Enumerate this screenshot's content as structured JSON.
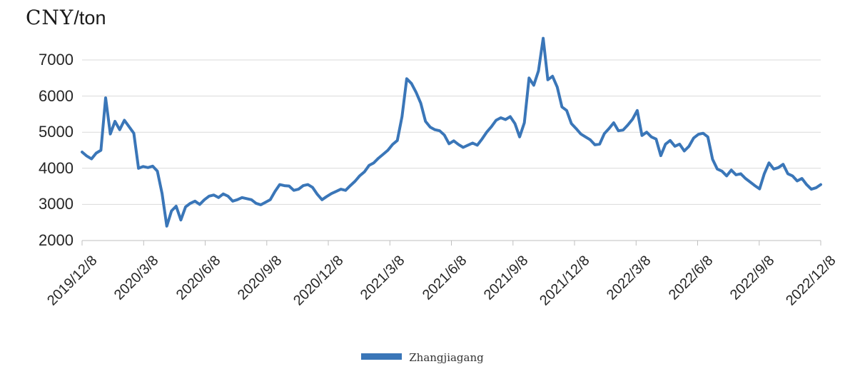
{
  "title": {
    "unit_currency": "CNY",
    "unit_suffix": "/ton"
  },
  "legend": {
    "series_label": "Zhangjiagang"
  },
  "colors": {
    "line": "#3a76b8",
    "gridline": "#d9d9d9",
    "axis": "#bfbfbf",
    "text": "#262626"
  },
  "chart_data": {
    "type": "line",
    "title": "CNY/ton",
    "ylabel": "CNY/ton",
    "ylim": [
      2000,
      7000
    ],
    "y_tick_interval": 1000,
    "y_tick_labels": [
      "7000",
      "6000",
      "5000",
      "4000",
      "3000",
      "2000"
    ],
    "x_tick_labels": [
      "2019/12/8",
      "2020/3/8",
      "2020/6/8",
      "2020/9/8",
      "2020/12/8",
      "2021/3/8",
      "2021/6/8",
      "2021/9/8",
      "2021/12/8",
      "2022/3/8",
      "2022/6/8",
      "2022/9/8",
      "2022/12/8"
    ],
    "grid": "horizontal",
    "legend_position": "bottom-center",
    "series": [
      {
        "name": "Zhangjiagang",
        "color": "#3a76b8",
        "dates": [
          "2019/12/8",
          "2019/12/15",
          "2019/12/22",
          "2019/12/29",
          "2020/1/5",
          "2020/1/12",
          "2020/1/19",
          "2020/1/26",
          "2020/2/2",
          "2020/2/9",
          "2020/2/16",
          "2020/2/23",
          "2020/3/1",
          "2020/3/8",
          "2020/3/15",
          "2020/3/22",
          "2020/3/29",
          "2020/4/5",
          "2020/4/12",
          "2020/4/19",
          "2020/4/26",
          "2020/5/3",
          "2020/5/10",
          "2020/5/17",
          "2020/5/24",
          "2020/5/31",
          "2020/6/7",
          "2020/6/14",
          "2020/6/21",
          "2020/6/28",
          "2020/7/5",
          "2020/7/12",
          "2020/7/19",
          "2020/7/26",
          "2020/8/2",
          "2020/8/9",
          "2020/8/16",
          "2020/8/23",
          "2020/8/30",
          "2020/9/6",
          "2020/9/13",
          "2020/9/20",
          "2020/9/27",
          "2020/10/4",
          "2020/10/11",
          "2020/10/18",
          "2020/10/25",
          "2020/11/1",
          "2020/11/8",
          "2020/11/15",
          "2020/11/22",
          "2020/11/29",
          "2020/12/6",
          "2020/12/13",
          "2020/12/20",
          "2020/12/27",
          "2021/1/3",
          "2021/1/10",
          "2021/1/17",
          "2021/1/24",
          "2021/1/31",
          "2021/2/7",
          "2021/2/14",
          "2021/2/21",
          "2021/2/28",
          "2021/3/7",
          "2021/3/14",
          "2021/3/21",
          "2021/3/28",
          "2021/4/4",
          "2021/4/11",
          "2021/4/18",
          "2021/4/25",
          "2021/5/2",
          "2021/5/9",
          "2021/5/16",
          "2021/5/23",
          "2021/5/30",
          "2021/6/6",
          "2021/6/13",
          "2021/6/20",
          "2021/6/27",
          "2021/7/4",
          "2021/7/11",
          "2021/7/18",
          "2021/7/25",
          "2021/8/1",
          "2021/8/8",
          "2021/8/15",
          "2021/8/22",
          "2021/8/29",
          "2021/9/5",
          "2021/9/12",
          "2021/9/19",
          "2021/9/26",
          "2021/10/3",
          "2021/10/10",
          "2021/10/17",
          "2021/10/24",
          "2021/10/31",
          "2021/11/7",
          "2021/11/14",
          "2021/11/21",
          "2021/11/28",
          "2021/12/5",
          "2021/12/12",
          "2021/12/19",
          "2021/12/26",
          "2022/1/2",
          "2022/1/9",
          "2022/1/16",
          "2022/1/23",
          "2022/1/30",
          "2022/2/6",
          "2022/2/13",
          "2022/2/20",
          "2022/2/27",
          "2022/3/6",
          "2022/3/13",
          "2022/3/20",
          "2022/3/27",
          "2022/4/3",
          "2022/4/10",
          "2022/4/17",
          "2022/4/24",
          "2022/5/1",
          "2022/5/8",
          "2022/5/15",
          "2022/5/22",
          "2022/5/29",
          "2022/6/5",
          "2022/6/12",
          "2022/6/19",
          "2022/6/26",
          "2022/7/3",
          "2022/7/10",
          "2022/7/17",
          "2022/7/24",
          "2022/7/31",
          "2022/8/7",
          "2022/8/14",
          "2022/8/21",
          "2022/8/28",
          "2022/9/4",
          "2022/9/11",
          "2022/9/18",
          "2022/9/25",
          "2022/10/2",
          "2022/10/9",
          "2022/10/16",
          "2022/10/23",
          "2022/10/30",
          "2022/11/6",
          "2022/11/13",
          "2022/11/20",
          "2022/11/27",
          "2022/12/4",
          "2022/12/8"
        ],
        "values": [
          4450,
          4340,
          4260,
          4420,
          4500,
          5950,
          4950,
          5300,
          5070,
          5330,
          5150,
          4970,
          4000,
          4050,
          4020,
          4060,
          3920,
          3300,
          2400,
          2820,
          2950,
          2570,
          2930,
          3030,
          3090,
          3000,
          3130,
          3230,
          3260,
          3190,
          3290,
          3230,
          3090,
          3130,
          3190,
          3160,
          3130,
          3030,
          2990,
          3060,
          3130,
          3360,
          3550,
          3520,
          3510,
          3390,
          3420,
          3520,
          3550,
          3470,
          3280,
          3130,
          3220,
          3300,
          3360,
          3420,
          3390,
          3520,
          3640,
          3790,
          3900,
          4080,
          4150,
          4280,
          4390,
          4500,
          4660,
          4770,
          5430,
          6480,
          6350,
          6100,
          5800,
          5300,
          5140,
          5070,
          5040,
          4920,
          4680,
          4760,
          4660,
          4580,
          4640,
          4700,
          4640,
          4810,
          5000,
          5150,
          5330,
          5400,
          5350,
          5430,
          5240,
          4870,
          5260,
          6500,
          6300,
          6700,
          7600,
          6450,
          6550,
          6250,
          5700,
          5600,
          5240,
          5100,
          4950,
          4870,
          4790,
          4650,
          4670,
          4960,
          5100,
          5260,
          5040,
          5060,
          5200,
          5360,
          5600,
          4910,
          5000,
          4870,
          4810,
          4350,
          4670,
          4770,
          4610,
          4670,
          4480,
          4610,
          4840,
          4940,
          4970,
          4870,
          4250,
          3980,
          3920,
          3790,
          3950,
          3820,
          3850,
          3720,
          3620,
          3520,
          3430,
          3850,
          4150,
          3980,
          4020,
          4110,
          3850,
          3790,
          3650,
          3720,
          3550,
          3420,
          3460,
          3550
        ]
      }
    ]
  }
}
